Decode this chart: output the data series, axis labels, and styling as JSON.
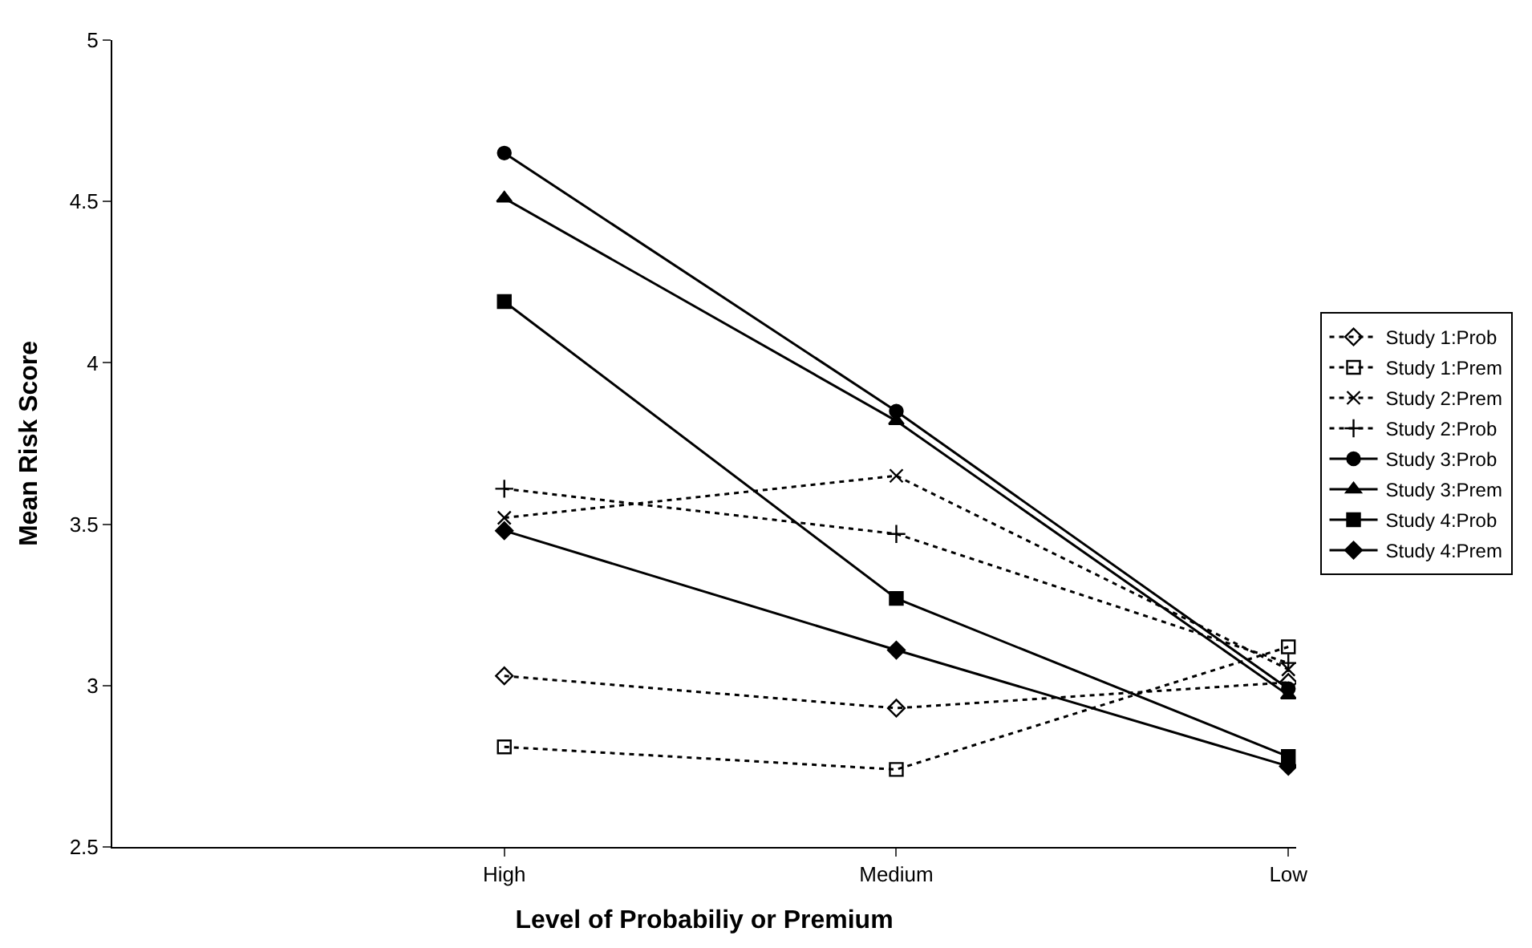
{
  "chart_data": {
    "type": "line",
    "xlabel": "Level of Probabiliy or Premium",
    "ylabel": "Mean Risk Score",
    "categories": [
      "High",
      "Medium",
      "Low"
    ],
    "series": [
      {
        "name": "Study 1:Prob",
        "color": "#000000",
        "values": [
          3.03,
          2.93,
          3.01
        ],
        "marker": "diamond-open",
        "line_style": "dotted"
      },
      {
        "name": "Study 1:Prem",
        "color": "#000000",
        "values": [
          2.81,
          2.74,
          3.12
        ],
        "marker": "square-open",
        "line_style": "dotted"
      },
      {
        "name": "Study 2:Prem",
        "color": "#000000",
        "values": [
          3.52,
          3.65,
          3.05
        ],
        "marker": "x",
        "line_style": "dotted"
      },
      {
        "name": "Study 2:Prob",
        "color": "#000000",
        "values": [
          3.61,
          3.47,
          3.07
        ],
        "marker": "cross",
        "line_style": "dotted"
      },
      {
        "name": "Study 3:Prob",
        "color": "#000000",
        "values": [
          4.65,
          3.85,
          2.99
        ],
        "marker": "circle",
        "line_style": "solid"
      },
      {
        "name": "Study 3:Prem",
        "color": "#000000",
        "values": [
          4.51,
          3.82,
          2.97
        ],
        "marker": "triangle",
        "line_style": "solid"
      },
      {
        "name": "Study 4:Prob",
        "color": "#000000",
        "values": [
          4.19,
          3.27,
          2.78
        ],
        "marker": "square",
        "line_style": "solid"
      },
      {
        "name": "Study 4:Prem",
        "color": "#000000",
        "values": [
          3.48,
          3.11,
          2.75
        ],
        "marker": "diamond",
        "line_style": "solid"
      }
    ],
    "ylim": [
      2.5,
      5
    ],
    "yticks": [
      2.5,
      3,
      3.5,
      4,
      4.5,
      5
    ],
    "legend": "right"
  }
}
